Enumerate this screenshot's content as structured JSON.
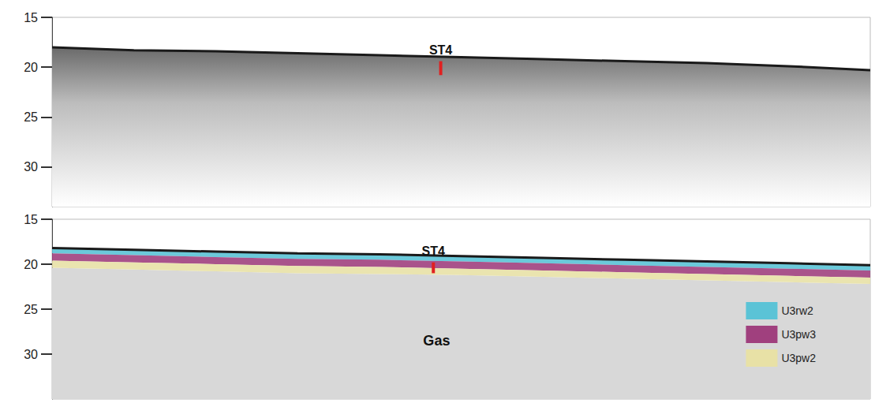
{
  "chart_data": [
    {
      "type": "seismic_profile",
      "xlim": [
        0,
        100
      ],
      "ylim": [
        15,
        34
      ],
      "yticks": [
        15,
        20,
        25,
        30
      ],
      "tick_labels": "y",
      "grid": false,
      "x": [
        0,
        10,
        20,
        30,
        40,
        50,
        60,
        70,
        80,
        90,
        100
      ],
      "seafloor": [
        18.0,
        18.3,
        18.4,
        18.6,
        18.8,
        19.0,
        19.2,
        19.4,
        19.6,
        19.9,
        20.3
      ],
      "annotations": [
        {
          "text": "ST4",
          "x": 47.5,
          "y_range": [
            19.4,
            20.8
          ],
          "color": "#e02020"
        }
      ]
    },
    {
      "type": "seismic_profile",
      "xlim": [
        0,
        100
      ],
      "ylim": [
        15,
        35
      ],
      "yticks": [
        15,
        20,
        25,
        30
      ],
      "tick_labels": "y",
      "grid": false,
      "legend": "lower right",
      "x": [
        0,
        10,
        20,
        30,
        40,
        50,
        60,
        70,
        80,
        90,
        100
      ],
      "series": [
        {
          "name": "U3rw2",
          "color": "#5bc3d6",
          "top": [
            18.2,
            18.4,
            18.6,
            18.8,
            18.9,
            19.1,
            19.3,
            19.5,
            19.7,
            19.9,
            20.1
          ],
          "bottom": [
            18.8,
            19.0,
            19.2,
            19.4,
            19.5,
            19.7,
            19.9,
            20.1,
            20.3,
            20.5,
            20.7
          ]
        },
        {
          "name": "U3pw3",
          "color": "#a0407e",
          "top": [
            18.8,
            19.0,
            19.2,
            19.4,
            19.5,
            19.7,
            19.9,
            20.1,
            20.3,
            20.5,
            20.7
          ],
          "bottom": [
            19.6,
            19.8,
            20.0,
            20.2,
            20.3,
            20.5,
            20.7,
            20.9,
            21.1,
            21.3,
            21.5
          ]
        },
        {
          "name": "U3pw2",
          "color": "#e8e1a6",
          "top": [
            19.6,
            19.8,
            20.0,
            20.2,
            20.3,
            20.5,
            20.7,
            20.9,
            21.1,
            21.3,
            21.5
          ],
          "bottom": [
            20.4,
            20.6,
            20.8,
            21.0,
            21.1,
            21.2,
            21.4,
            21.6,
            21.8,
            22.0,
            22.2
          ]
        }
      ],
      "annotations": [
        {
          "text": "ST4",
          "x": 46.6,
          "y_range": [
            19.8,
            21.0
          ],
          "color": "#e02020"
        },
        {
          "text": "Gas",
          "x": 47,
          "y": 28.5
        }
      ]
    }
  ]
}
